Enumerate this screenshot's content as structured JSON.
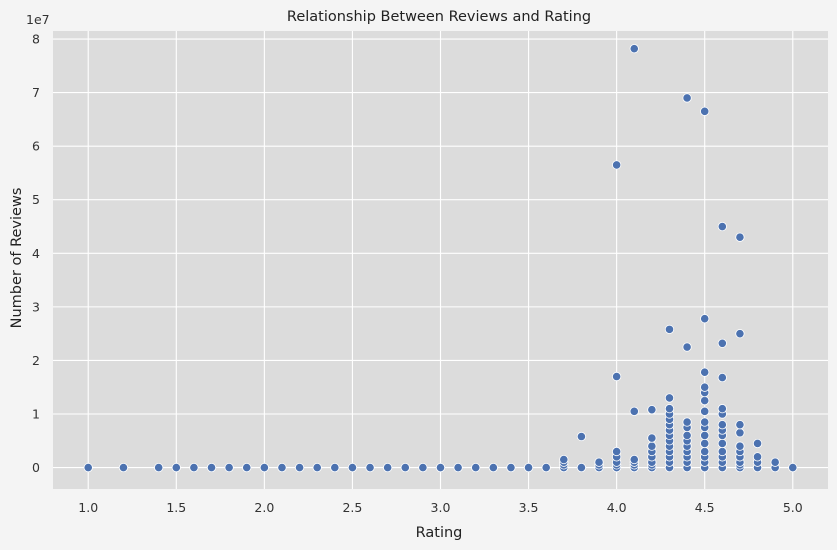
{
  "chart_data": {
    "type": "scatter",
    "title": "Relationship Between Reviews and Rating",
    "xlabel": "Rating",
    "ylabel": "Number of Reviews",
    "y_offset_label": "1e7",
    "xlim": [
      0.8,
      5.2
    ],
    "ylim": [
      -0.4,
      8.15
    ],
    "x_ticks": [
      1.0,
      1.5,
      2.0,
      2.5,
      3.0,
      3.5,
      4.0,
      4.5,
      5.0
    ],
    "x_tick_labels": [
      "1.0",
      "1.5",
      "2.0",
      "2.5",
      "3.0",
      "3.5",
      "4.0",
      "4.5",
      "5.0"
    ],
    "y_ticks": [
      0,
      1,
      2,
      3,
      4,
      5,
      6,
      7,
      8
    ],
    "y_tick_labels": [
      "0",
      "1",
      "2",
      "3",
      "4",
      "5",
      "6",
      "7",
      "8"
    ],
    "grid": true,
    "colors": {
      "point": "#4c72b0",
      "plot_bg": "#dcdcdc",
      "page_bg": "#f4f4f4",
      "grid": "#ffffff"
    },
    "points": [
      [
        1.0,
        0.0
      ],
      [
        1.2,
        0.0
      ],
      [
        1.4,
        0.0
      ],
      [
        1.5,
        0.0
      ],
      [
        1.6,
        0.0
      ],
      [
        1.7,
        0.0
      ],
      [
        1.8,
        0.0
      ],
      [
        1.9,
        0.0
      ],
      [
        2.0,
        0.0
      ],
      [
        2.1,
        0.0
      ],
      [
        2.2,
        0.0
      ],
      [
        2.3,
        0.0
      ],
      [
        2.4,
        0.0
      ],
      [
        2.5,
        0.0
      ],
      [
        2.6,
        0.0
      ],
      [
        2.7,
        0.0
      ],
      [
        2.8,
        0.0
      ],
      [
        2.9,
        0.0
      ],
      [
        3.0,
        0.0
      ],
      [
        3.1,
        0.0
      ],
      [
        3.2,
        0.0
      ],
      [
        3.3,
        0.0
      ],
      [
        3.4,
        0.0
      ],
      [
        3.5,
        0.0
      ],
      [
        3.6,
        0.0
      ],
      [
        3.7,
        0.0
      ],
      [
        3.7,
        0.05
      ],
      [
        3.7,
        0.1
      ],
      [
        3.7,
        0.15
      ],
      [
        3.8,
        0.0
      ],
      [
        3.8,
        0.58
      ],
      [
        3.9,
        0.0
      ],
      [
        3.9,
        0.05
      ],
      [
        3.9,
        0.1
      ],
      [
        4.0,
        0.0
      ],
      [
        4.0,
        0.05
      ],
      [
        4.0,
        0.1
      ],
      [
        4.0,
        0.2
      ],
      [
        4.0,
        0.3
      ],
      [
        4.0,
        1.7
      ],
      [
        4.0,
        5.65
      ],
      [
        4.1,
        0.0
      ],
      [
        4.1,
        0.05
      ],
      [
        4.1,
        0.1
      ],
      [
        4.1,
        0.15
      ],
      [
        4.1,
        1.05
      ],
      [
        4.1,
        7.82
      ],
      [
        4.2,
        0.0
      ],
      [
        4.2,
        0.05
      ],
      [
        4.2,
        0.1
      ],
      [
        4.2,
        0.2
      ],
      [
        4.2,
        0.3
      ],
      [
        4.2,
        0.4
      ],
      [
        4.2,
        0.55
      ],
      [
        4.2,
        1.08
      ],
      [
        4.3,
        0.0
      ],
      [
        4.3,
        0.1
      ],
      [
        4.3,
        0.2
      ],
      [
        4.3,
        0.3
      ],
      [
        4.3,
        0.4
      ],
      [
        4.3,
        0.5
      ],
      [
        4.3,
        0.6
      ],
      [
        4.3,
        0.7
      ],
      [
        4.3,
        0.8
      ],
      [
        4.3,
        0.9
      ],
      [
        4.3,
        1.0
      ],
      [
        4.3,
        1.1
      ],
      [
        4.3,
        1.3
      ],
      [
        4.3,
        2.58
      ],
      [
        4.4,
        0.0
      ],
      [
        4.4,
        0.1
      ],
      [
        4.4,
        0.2
      ],
      [
        4.4,
        0.3
      ],
      [
        4.4,
        0.4
      ],
      [
        4.4,
        0.5
      ],
      [
        4.4,
        0.6
      ],
      [
        4.4,
        0.75
      ],
      [
        4.4,
        0.85
      ],
      [
        4.4,
        2.25
      ],
      [
        4.4,
        6.9
      ],
      [
        4.5,
        0.0
      ],
      [
        4.5,
        0.1
      ],
      [
        4.5,
        0.2
      ],
      [
        4.5,
        0.3
      ],
      [
        4.5,
        0.45
      ],
      [
        4.5,
        0.6
      ],
      [
        4.5,
        0.75
      ],
      [
        4.5,
        0.85
      ],
      [
        4.5,
        1.05
      ],
      [
        4.5,
        1.25
      ],
      [
        4.5,
        1.4
      ],
      [
        4.5,
        1.5
      ],
      [
        4.5,
        1.78
      ],
      [
        4.5,
        2.78
      ],
      [
        4.5,
        6.65
      ],
      [
        4.6,
        0.0
      ],
      [
        4.6,
        0.1
      ],
      [
        4.6,
        0.2
      ],
      [
        4.6,
        0.3
      ],
      [
        4.6,
        0.45
      ],
      [
        4.6,
        0.6
      ],
      [
        4.6,
        0.7
      ],
      [
        4.6,
        0.8
      ],
      [
        4.6,
        1.0
      ],
      [
        4.6,
        1.1
      ],
      [
        4.6,
        1.68
      ],
      [
        4.6,
        2.32
      ],
      [
        4.6,
        4.5
      ],
      [
        4.7,
        0.0
      ],
      [
        4.7,
        0.05
      ],
      [
        4.7,
        0.1
      ],
      [
        4.7,
        0.2
      ],
      [
        4.7,
        0.3
      ],
      [
        4.7,
        0.4
      ],
      [
        4.7,
        0.65
      ],
      [
        4.7,
        0.8
      ],
      [
        4.7,
        2.5
      ],
      [
        4.7,
        4.3
      ],
      [
        4.8,
        0.0
      ],
      [
        4.8,
        0.1
      ],
      [
        4.8,
        0.2
      ],
      [
        4.8,
        0.45
      ],
      [
        4.9,
        0.0
      ],
      [
        4.9,
        0.1
      ],
      [
        5.0,
        0.0
      ]
    ]
  }
}
